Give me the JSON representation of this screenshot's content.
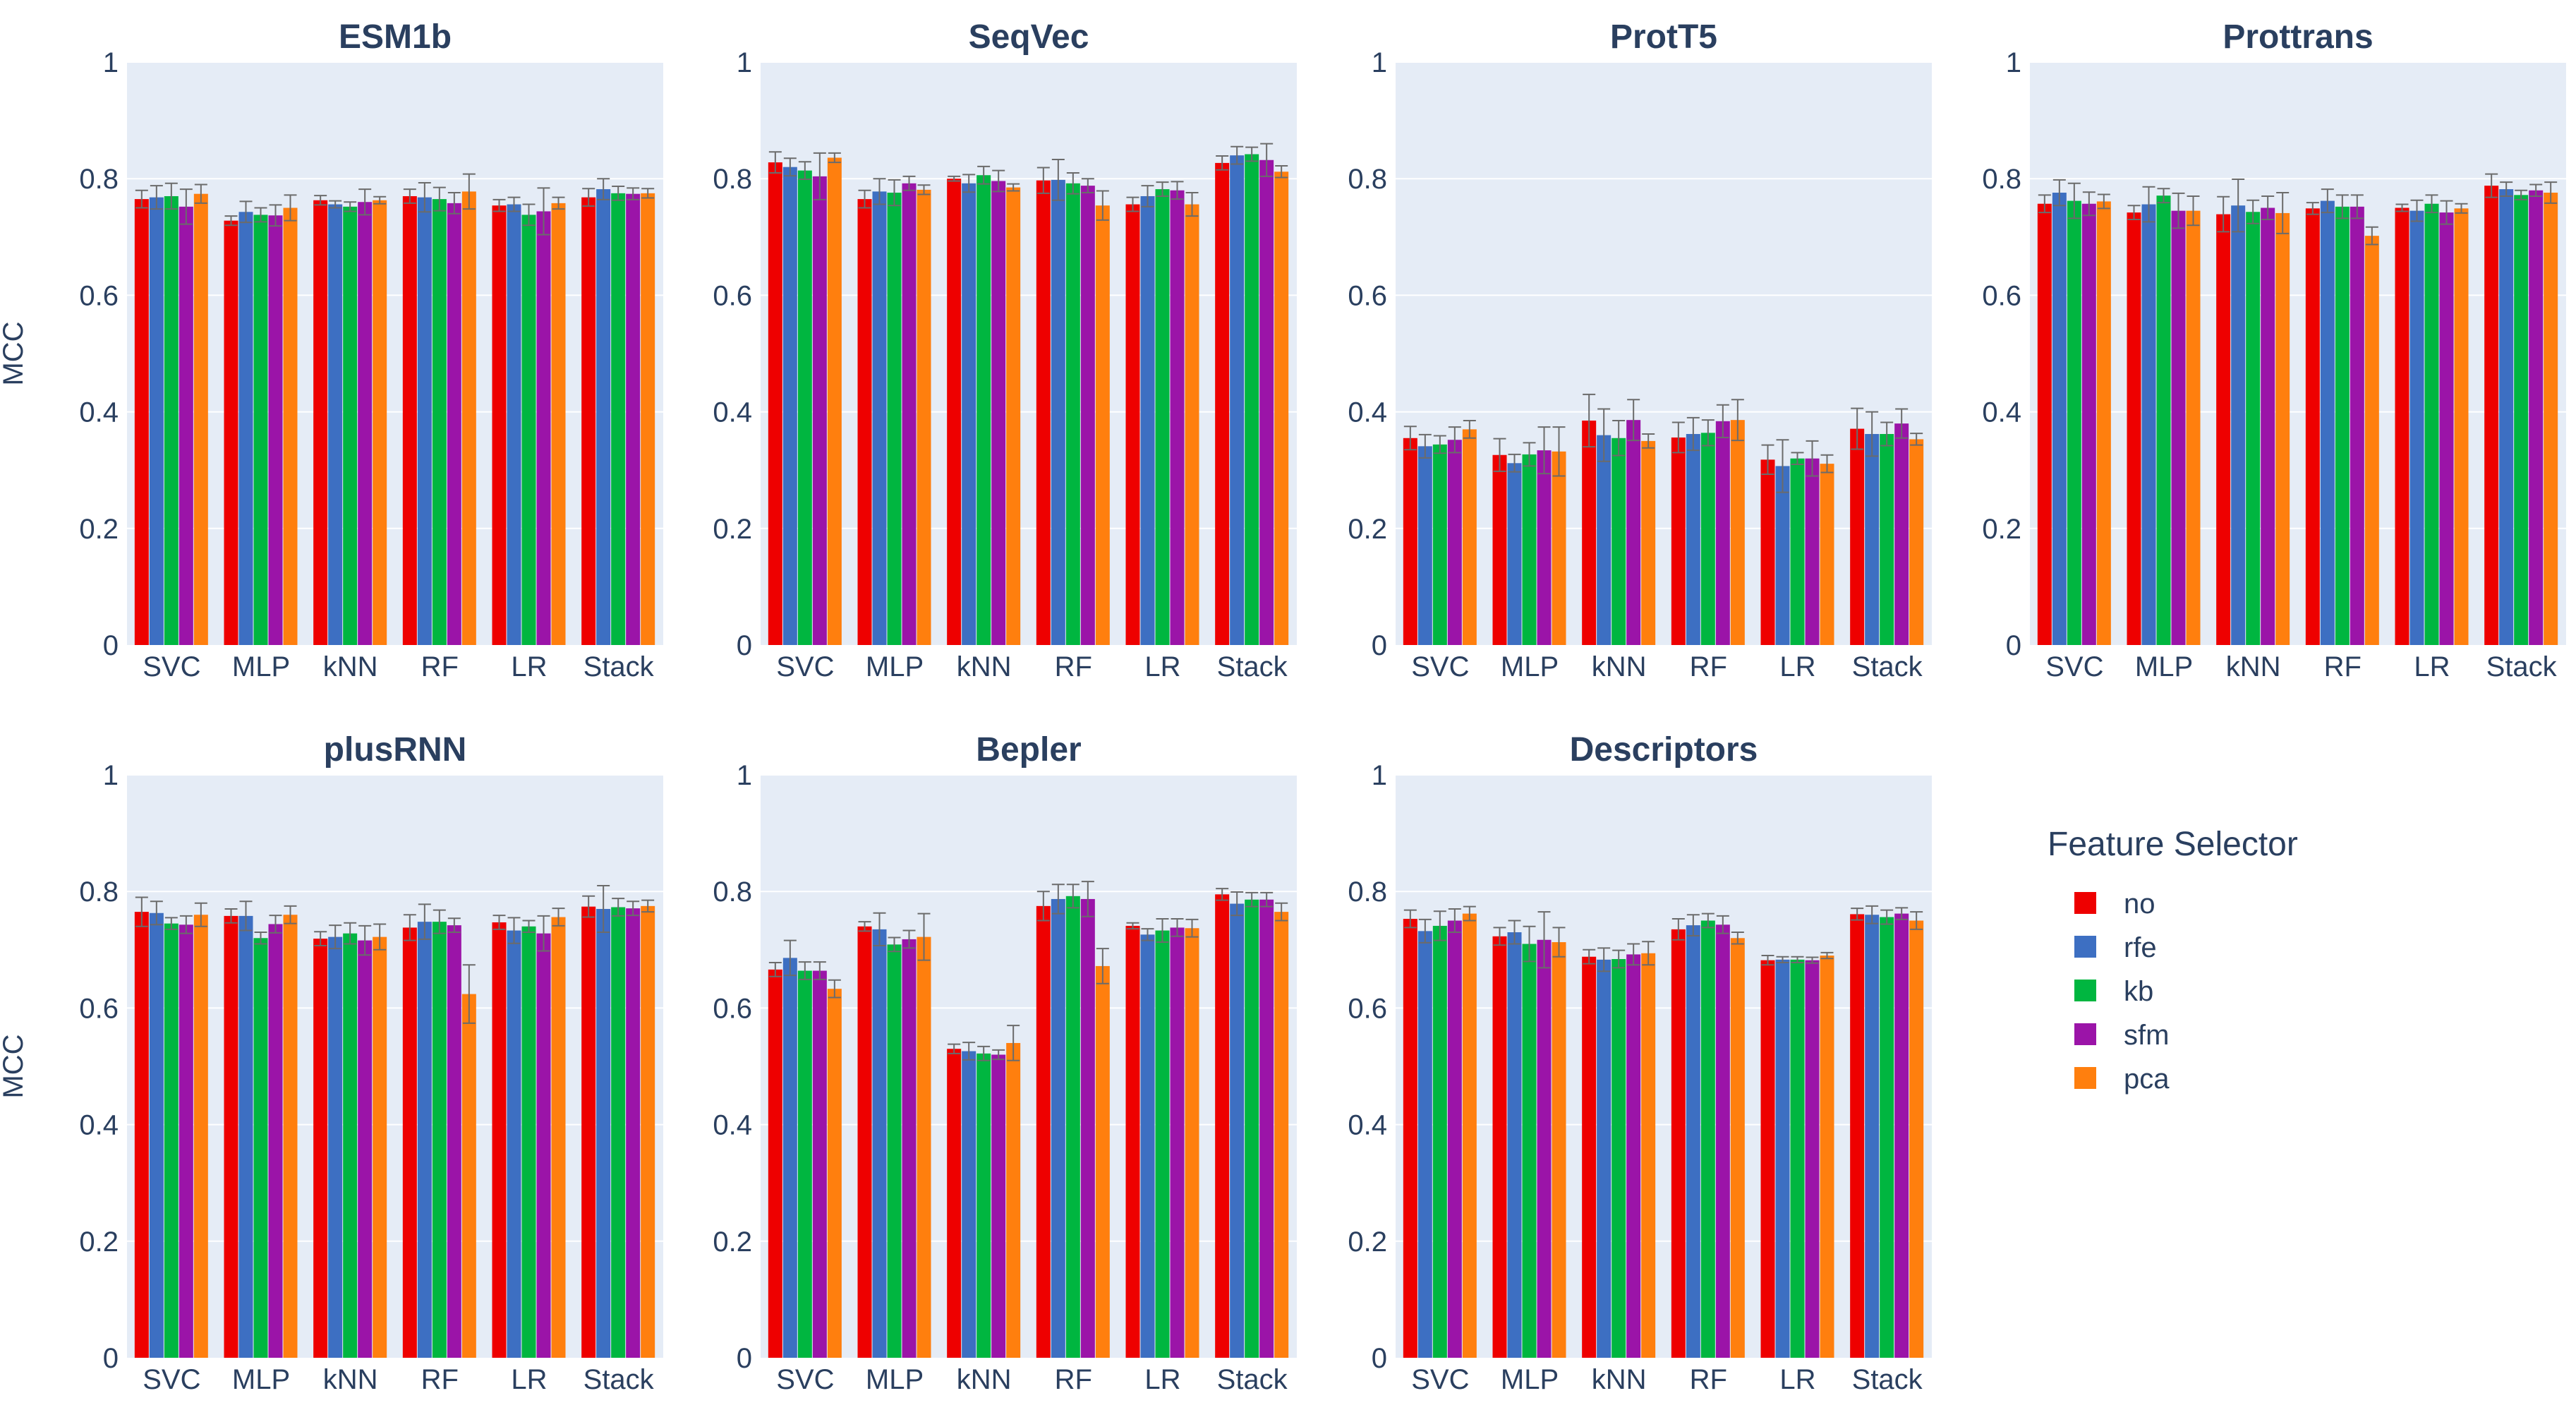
{
  "chart_data": {
    "type": "bar",
    "layout": "grouped bars with error bars, 2x4 grid of panels",
    "categories": [
      "SVC",
      "MLP",
      "kNN",
      "RF",
      "LR",
      "Stack"
    ],
    "ylabel": "MCC",
    "ylim": [
      0,
      1
    ],
    "yticks": [
      0,
      0.2,
      0.4,
      0.6,
      0.8,
      1
    ],
    "ytick_labels": [
      "0",
      "0.2",
      "0.4",
      "0.6",
      "0.8",
      "1"
    ],
    "grid": true,
    "legend": {
      "title": "Feature Selector",
      "placement": "right",
      "entries": [
        {
          "key": "no",
          "label": "no",
          "color": "#ee0000"
        },
        {
          "key": "rfe",
          "label": "rfe",
          "color": "#3d6fc2"
        },
        {
          "key": "kb",
          "label": "kb",
          "color": "#00b640"
        },
        {
          "key": "sfm",
          "label": "sfm",
          "color": "#9b14a8"
        },
        {
          "key": "pca",
          "label": "pca",
          "color": "#ff7f0e"
        }
      ]
    },
    "colors": {
      "plot_background": "#e5ecf6",
      "grid": "#ffffff",
      "text": "#2a3f5f",
      "error_bar": "#6b6b6b"
    },
    "panels": [
      {
        "title": "ESM1b",
        "series": [
          {
            "name": "no",
            "values": [
              0.765,
              0.728,
              0.763,
              0.77,
              0.754,
              0.768
            ],
            "errors": [
              0.015,
              0.008,
              0.008,
              0.012,
              0.01,
              0.015
            ]
          },
          {
            "name": "rfe",
            "values": [
              0.768,
              0.743,
              0.756,
              0.768,
              0.756,
              0.782
            ],
            "errors": [
              0.02,
              0.018,
              0.006,
              0.025,
              0.012,
              0.018
            ]
          },
          {
            "name": "kb",
            "values": [
              0.77,
              0.738,
              0.752,
              0.765,
              0.738,
              0.775
            ],
            "errors": [
              0.022,
              0.012,
              0.008,
              0.02,
              0.018,
              0.012
            ]
          },
          {
            "name": "sfm",
            "values": [
              0.752,
              0.737,
              0.76,
              0.758,
              0.744,
              0.774
            ],
            "errors": [
              0.03,
              0.018,
              0.022,
              0.018,
              0.04,
              0.01
            ]
          },
          {
            "name": "pca",
            "values": [
              0.774,
              0.75,
              0.763,
              0.778,
              0.758,
              0.775
            ],
            "errors": [
              0.016,
              0.022,
              0.006,
              0.03,
              0.01,
              0.008
            ]
          }
        ]
      },
      {
        "title": "SeqVec",
        "series": [
          {
            "name": "no",
            "values": [
              0.828,
              0.765,
              0.8,
              0.797,
              0.756,
              0.827
            ],
            "errors": [
              0.018,
              0.015,
              0.004,
              0.022,
              0.012,
              0.012
            ]
          },
          {
            "name": "rfe",
            "values": [
              0.82,
              0.778,
              0.792,
              0.798,
              0.77,
              0.84
            ],
            "errors": [
              0.015,
              0.022,
              0.015,
              0.035,
              0.018,
              0.015
            ]
          },
          {
            "name": "kb",
            "values": [
              0.814,
              0.776,
              0.806,
              0.792,
              0.782,
              0.842
            ],
            "errors": [
              0.015,
              0.022,
              0.015,
              0.018,
              0.012,
              0.012
            ]
          },
          {
            "name": "sfm",
            "values": [
              0.804,
              0.792,
              0.796,
              0.788,
              0.78,
              0.832
            ],
            "errors": [
              0.04,
              0.012,
              0.018,
              0.012,
              0.015,
              0.028
            ]
          },
          {
            "name": "pca",
            "values": [
              0.836,
              0.781,
              0.785,
              0.754,
              0.756,
              0.812
            ],
            "errors": [
              0.008,
              0.008,
              0.006,
              0.025,
              0.02,
              0.01
            ]
          }
        ]
      },
      {
        "title": "ProtT5",
        "series": [
          {
            "name": "no",
            "values": [
              0.355,
              0.326,
              0.385,
              0.356,
              0.318,
              0.371
            ],
            "errors": [
              0.02,
              0.028,
              0.045,
              0.026,
              0.025,
              0.035
            ]
          },
          {
            "name": "rfe",
            "values": [
              0.341,
              0.312,
              0.36,
              0.362,
              0.307,
              0.362
            ],
            "errors": [
              0.02,
              0.015,
              0.045,
              0.028,
              0.045,
              0.038
            ]
          },
          {
            "name": "kb",
            "values": [
              0.344,
              0.327,
              0.355,
              0.364,
              0.32,
              0.362
            ],
            "errors": [
              0.015,
              0.02,
              0.03,
              0.022,
              0.01,
              0.02
            ]
          },
          {
            "name": "sfm",
            "values": [
              0.352,
              0.334,
              0.386,
              0.384,
              0.32,
              0.38
            ],
            "errors": [
              0.022,
              0.04,
              0.035,
              0.028,
              0.03,
              0.025
            ]
          },
          {
            "name": "pca",
            "values": [
              0.37,
              0.332,
              0.35,
              0.386,
              0.311,
              0.353
            ],
            "errors": [
              0.015,
              0.042,
              0.012,
              0.035,
              0.015,
              0.01
            ]
          }
        ]
      },
      {
        "title": "Prottrans",
        "series": [
          {
            "name": "no",
            "values": [
              0.757,
              0.742,
              0.739,
              0.749,
              0.75,
              0.788
            ],
            "errors": [
              0.015,
              0.012,
              0.03,
              0.01,
              0.006,
              0.02
            ]
          },
          {
            "name": "rfe",
            "values": [
              0.776,
              0.756,
              0.754,
              0.762,
              0.745,
              0.782
            ],
            "errors": [
              0.022,
              0.03,
              0.045,
              0.02,
              0.018,
              0.012
            ]
          },
          {
            "name": "kb",
            "values": [
              0.762,
              0.771,
              0.743,
              0.752,
              0.757,
              0.772
            ],
            "errors": [
              0.03,
              0.012,
              0.02,
              0.02,
              0.015,
              0.008
            ]
          },
          {
            "name": "sfm",
            "values": [
              0.757,
              0.745,
              0.75,
              0.752,
              0.742,
              0.78
            ],
            "errors": [
              0.02,
              0.03,
              0.02,
              0.02,
              0.02,
              0.01
            ]
          },
          {
            "name": "pca",
            "values": [
              0.761,
              0.745,
              0.741,
              0.702,
              0.749,
              0.776
            ],
            "errors": [
              0.012,
              0.025,
              0.035,
              0.015,
              0.008,
              0.018
            ]
          }
        ]
      },
      {
        "title": "plusRNN",
        "series": [
          {
            "name": "no",
            "values": [
              0.765,
              0.758,
              0.719,
              0.738,
              0.747,
              0.774
            ],
            "errors": [
              0.025,
              0.012,
              0.012,
              0.022,
              0.012,
              0.018
            ]
          },
          {
            "name": "rfe",
            "values": [
              0.763,
              0.758,
              0.722,
              0.748,
              0.733,
              0.77
            ],
            "errors": [
              0.02,
              0.025,
              0.02,
              0.03,
              0.022,
              0.04
            ]
          },
          {
            "name": "kb",
            "values": [
              0.745,
              0.72,
              0.728,
              0.748,
              0.74,
              0.773
            ],
            "errors": [
              0.01,
              0.01,
              0.018,
              0.02,
              0.01,
              0.015
            ]
          },
          {
            "name": "sfm",
            "values": [
              0.743,
              0.744,
              0.716,
              0.742,
              0.728,
              0.771
            ],
            "errors": [
              0.015,
              0.015,
              0.025,
              0.012,
              0.03,
              0.012
            ]
          },
          {
            "name": "pca",
            "values": [
              0.76,
              0.76,
              0.722,
              0.624,
              0.756,
              0.775
            ],
            "errors": [
              0.02,
              0.015,
              0.022,
              0.05,
              0.015,
              0.01
            ]
          }
        ]
      },
      {
        "title": "Bepler",
        "series": [
          {
            "name": "no",
            "values": [
              0.666,
              0.74,
              0.53,
              0.775,
              0.741,
              0.795
            ],
            "errors": [
              0.012,
              0.008,
              0.008,
              0.025,
              0.005,
              0.01
            ]
          },
          {
            "name": "rfe",
            "values": [
              0.686,
              0.735,
              0.526,
              0.787,
              0.726,
              0.779
            ],
            "errors": [
              0.03,
              0.028,
              0.015,
              0.025,
              0.01,
              0.02
            ]
          },
          {
            "name": "kb",
            "values": [
              0.664,
              0.709,
              0.522,
              0.792,
              0.733,
              0.786
            ],
            "errors": [
              0.015,
              0.012,
              0.012,
              0.02,
              0.02,
              0.012
            ]
          },
          {
            "name": "sfm",
            "values": [
              0.664,
              0.718,
              0.52,
              0.787,
              0.738,
              0.786
            ],
            "errors": [
              0.015,
              0.015,
              0.008,
              0.03,
              0.015,
              0.012
            ]
          },
          {
            "name": "pca",
            "values": [
              0.633,
              0.722,
              0.54,
              0.672,
              0.737,
              0.765
            ],
            "errors": [
              0.015,
              0.04,
              0.03,
              0.03,
              0.015,
              0.015
            ]
          }
        ]
      },
      {
        "title": "Descriptors",
        "series": [
          {
            "name": "no",
            "values": [
              0.753,
              0.723,
              0.688,
              0.735,
              0.682,
              0.761
            ],
            "errors": [
              0.015,
              0.015,
              0.012,
              0.018,
              0.008,
              0.01
            ]
          },
          {
            "name": "rfe",
            "values": [
              0.732,
              0.73,
              0.683,
              0.742,
              0.683,
              0.76
            ],
            "errors": [
              0.02,
              0.02,
              0.02,
              0.018,
              0.005,
              0.015
            ]
          },
          {
            "name": "kb",
            "values": [
              0.741,
              0.71,
              0.684,
              0.75,
              0.683,
              0.756
            ],
            "errors": [
              0.025,
              0.03,
              0.015,
              0.012,
              0.005,
              0.012
            ]
          },
          {
            "name": "sfm",
            "values": [
              0.75,
              0.717,
              0.692,
              0.743,
              0.682,
              0.762
            ],
            "errors": [
              0.02,
              0.048,
              0.018,
              0.015,
              0.005,
              0.01
            ]
          },
          {
            "name": "pca",
            "values": [
              0.762,
              0.713,
              0.694,
              0.72,
              0.69,
              0.75
            ],
            "errors": [
              0.012,
              0.025,
              0.02,
              0.01,
              0.005,
              0.015
            ]
          }
        ]
      }
    ]
  }
}
